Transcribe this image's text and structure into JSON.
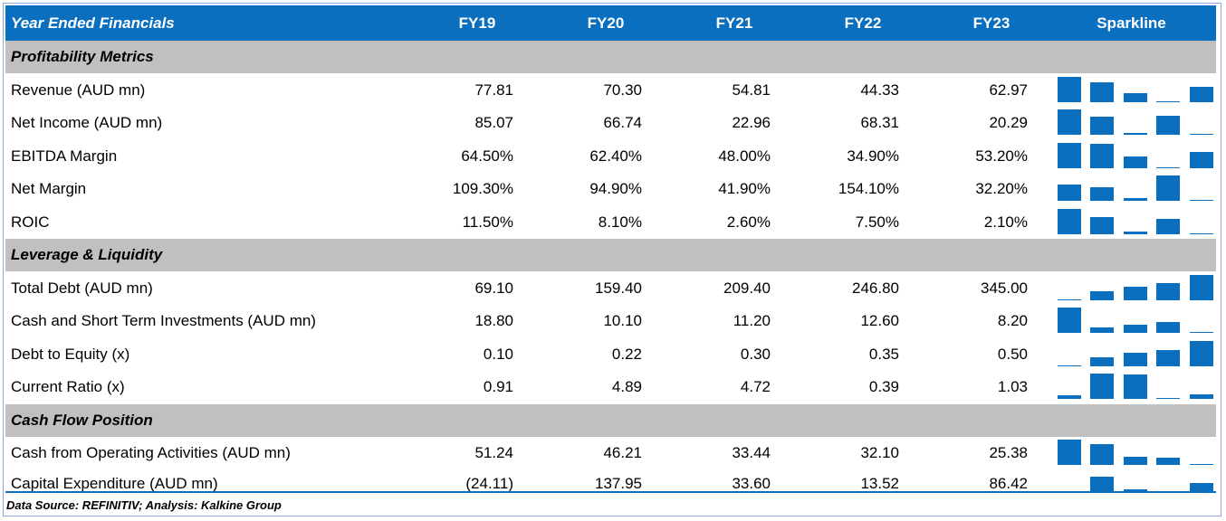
{
  "header": {
    "title": "Year Ended Financials",
    "columns": [
      "FY19",
      "FY20",
      "FY21",
      "FY22",
      "FY23"
    ],
    "sparkline_label": "Sparkline"
  },
  "sections": [
    {
      "title": "Profitability Metrics",
      "rows": [
        {
          "label": "Revenue (AUD mn)",
          "values": [
            "77.81",
            "70.30",
            "54.81",
            "44.33",
            "62.97"
          ],
          "nums": [
            77.81,
            70.3,
            54.81,
            44.33,
            62.97
          ]
        },
        {
          "label": "Net Income (AUD mn)",
          "values": [
            "85.07",
            "66.74",
            "22.96",
            "68.31",
            "20.29"
          ],
          "nums": [
            85.07,
            66.74,
            22.96,
            68.31,
            20.29
          ]
        },
        {
          "label": "EBITDA Margin",
          "values": [
            "64.50%",
            "62.40%",
            "48.00%",
            "34.90%",
            "53.20%"
          ],
          "nums": [
            64.5,
            62.4,
            48.0,
            34.9,
            53.2
          ]
        },
        {
          "label": "Net Margin",
          "values": [
            "109.30%",
            "94.90%",
            "41.90%",
            "154.10%",
            "32.20%"
          ],
          "nums": [
            109.3,
            94.9,
            41.9,
            154.1,
            32.2
          ]
        },
        {
          "label": "ROIC",
          "values": [
            "11.50%",
            "8.10%",
            "2.60%",
            "7.50%",
            "2.10%"
          ],
          "nums": [
            11.5,
            8.1,
            2.6,
            7.5,
            2.1
          ]
        }
      ]
    },
    {
      "title": "Leverage & Liquidity",
      "rows": [
        {
          "label": "Total Debt (AUD mn)",
          "values": [
            "69.10",
            "159.40",
            "209.40",
            "246.80",
            "345.00"
          ],
          "nums": [
            69.1,
            159.4,
            209.4,
            246.8,
            345.0
          ]
        },
        {
          "label": "Cash and Short Term Investments (AUD mn)",
          "values": [
            "18.80",
            "10.10",
            "11.20",
            "12.60",
            "8.20"
          ],
          "nums": [
            18.8,
            10.1,
            11.2,
            12.6,
            8.2
          ]
        },
        {
          "label": "Debt to Equity (x)",
          "values": [
            "0.10",
            "0.22",
            "0.30",
            "0.35",
            "0.50"
          ],
          "nums": [
            0.1,
            0.22,
            0.3,
            0.35,
            0.5
          ]
        },
        {
          "label": "Current Ratio (x)",
          "values": [
            "0.91",
            "4.89",
            "4.72",
            "0.39",
            "1.03"
          ],
          "nums": [
            0.91,
            4.89,
            4.72,
            0.39,
            1.03
          ]
        }
      ]
    },
    {
      "title": "Cash Flow Position",
      "rows": [
        {
          "label": "Cash from Operating Activities (AUD mn)",
          "values": [
            "51.24",
            "46.21",
            "33.44",
            "32.10",
            "25.38"
          ],
          "nums": [
            51.24,
            46.21,
            33.44,
            32.1,
            25.38
          ]
        },
        {
          "label": "Capital Expenditure (AUD mn)",
          "values": [
            "(24.11)",
            "137.95",
            "33.60",
            "13.52",
            "86.42"
          ],
          "nums": [
            -24.11,
            137.95,
            33.6,
            13.52,
            86.42
          ]
        }
      ]
    }
  ],
  "footer": "Data Source: REFINITIV; Analysis: Kalkine Group",
  "colors": {
    "accent": "#0b6fc0",
    "section_bg": "#c0c0c0",
    "negative": "#c00000"
  }
}
